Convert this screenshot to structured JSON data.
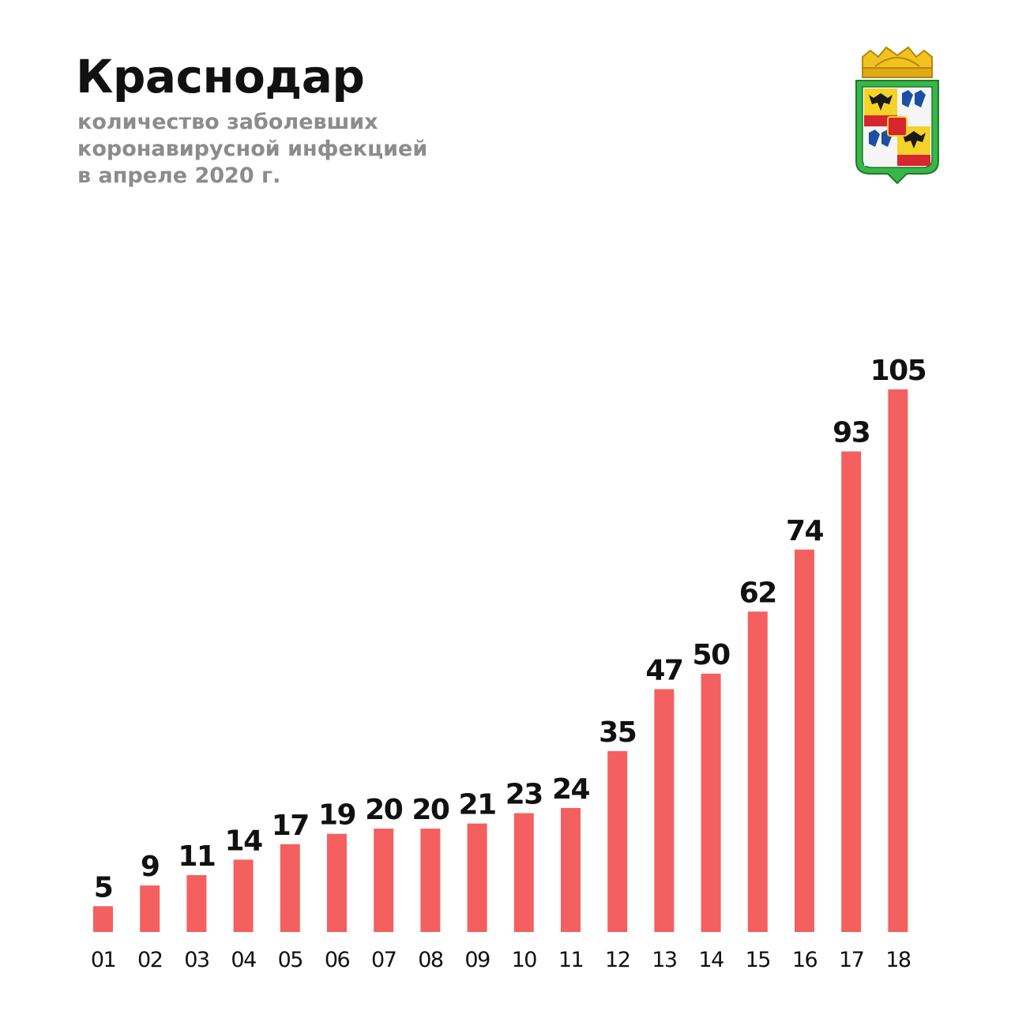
{
  "header": {
    "title": "Краснодар",
    "subtitle_lines": [
      "количество заболевших",
      "коронавирусной инфекцией",
      "в апреле 2020 г."
    ]
  },
  "emblem": {
    "icon": "krasnodar-coat-of-arms-icon"
  },
  "colors": {
    "bar": "#f46060",
    "value_label": "#111111",
    "tick_label": "#111111",
    "subtitle": "#8c8c8c"
  },
  "chart_data": {
    "type": "bar",
    "title": "Краснодар",
    "subtitle": "количество заболевших коронавирусной инфекцией в апреле 2020 г.",
    "xlabel": "",
    "ylabel": "",
    "categories": [
      "01",
      "02",
      "03",
      "04",
      "05",
      "06",
      "07",
      "08",
      "09",
      "10",
      "11",
      "12",
      "13",
      "14",
      "15",
      "16",
      "17",
      "18"
    ],
    "values": [
      5,
      9,
      11,
      14,
      17,
      19,
      20,
      20,
      21,
      23,
      24,
      35,
      47,
      50,
      62,
      74,
      93,
      105
    ],
    "ylim": [
      0,
      105
    ],
    "grid": false,
    "legend": "none",
    "data_labels": true
  }
}
